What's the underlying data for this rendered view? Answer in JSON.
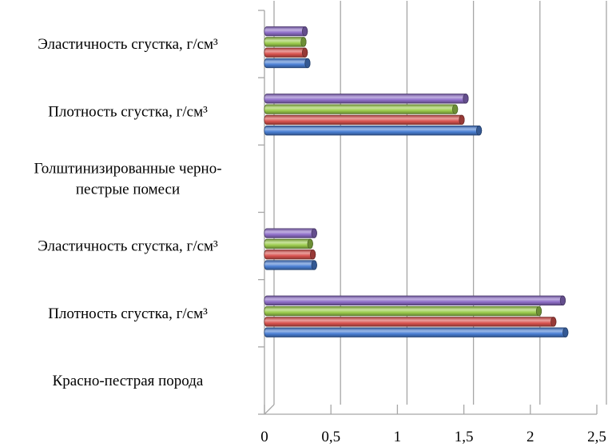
{
  "chart_data": {
    "type": "bar",
    "orientation": "horizontal",
    "style": "3d-cylinder",
    "categories": [
      [
        "Красно-пестрая порода"
      ],
      [
        "Плотность сгустка, г/см³"
      ],
      [
        "Эластичность сгустка, г/см³"
      ],
      [
        "Голштинизированные черно-",
        "пестрые помеси"
      ],
      [
        "Плотность сгустка, г/см³"
      ],
      [
        "Эластичность сгустка, г/см³"
      ]
    ],
    "series": [
      {
        "color": "#4a7fd4",
        "values": [
          0,
          2.24,
          0.35,
          0,
          1.59,
          0.3
        ]
      },
      {
        "color": "#d9534f",
        "values": [
          0,
          2.15,
          0.34,
          0,
          1.46,
          0.28
        ]
      },
      {
        "color": "#9ccc4d",
        "values": [
          0,
          2.04,
          0.32,
          0,
          1.41,
          0.27
        ]
      },
      {
        "color": "#8f6fc9",
        "values": [
          0,
          2.22,
          0.35,
          0,
          1.49,
          0.28
        ]
      }
    ],
    "xlim": [
      0,
      2.5
    ],
    "xticks": [
      "0",
      "0,5",
      "1",
      "1,5",
      "2",
      "2,5"
    ],
    "grid": true,
    "legend": "none"
  }
}
